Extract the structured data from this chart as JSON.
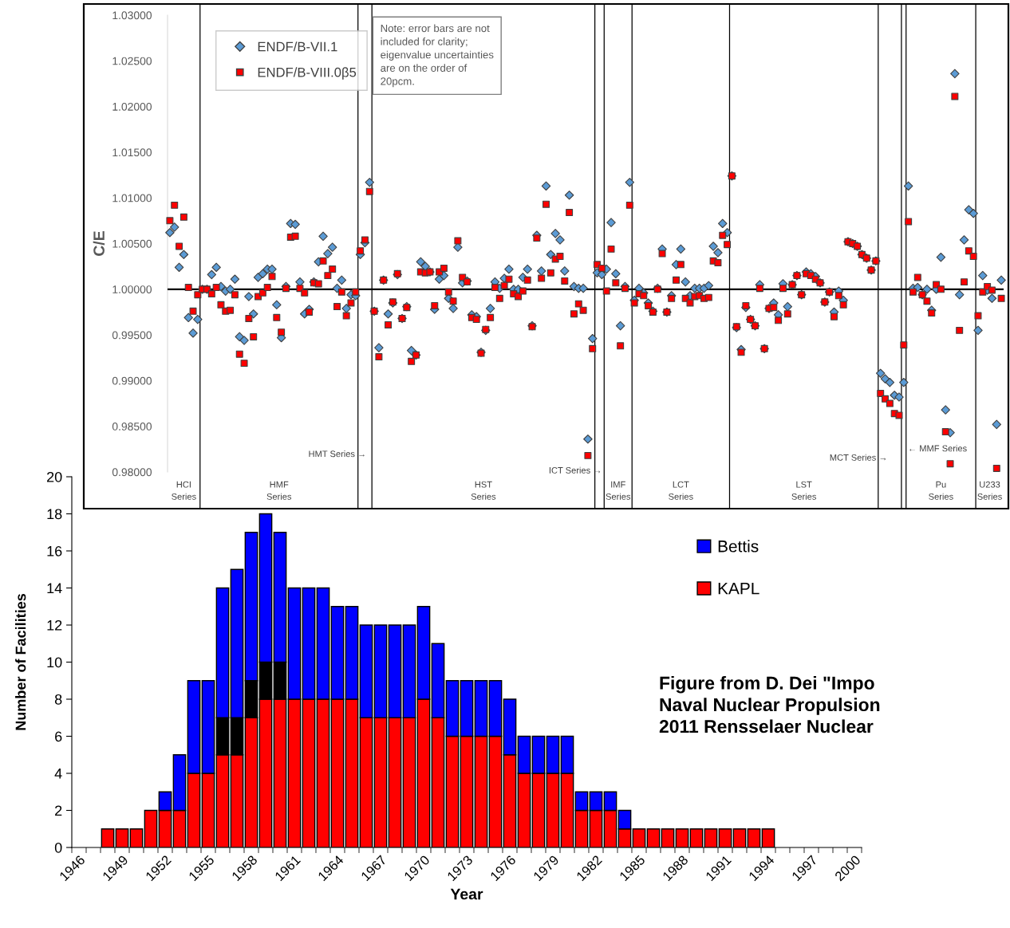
{
  "chart_data": [
    {
      "type": "scatter",
      "ylabel": "C/E",
      "legend": "top left",
      "categories": [
        null,
        null,
        null,
        null,
        null,
        null,
        null,
        null,
        null,
        null,
        null,
        null,
        null,
        null,
        null,
        null,
        null,
        null,
        null,
        null,
        null,
        null,
        null,
        null,
        null,
        null,
        null,
        null,
        null,
        null,
        null,
        null,
        null,
        null,
        null,
        null,
        null,
        null,
        null,
        null,
        null,
        null,
        null,
        null,
        null,
        null,
        null,
        null,
        null,
        null,
        null,
        null,
        null,
        null,
        null,
        null,
        null,
        null,
        null,
        null,
        null,
        null,
        null,
        null,
        null,
        null,
        null,
        null,
        null,
        null,
        null,
        null,
        null,
        null,
        null,
        null,
        null,
        null,
        null,
        null,
        null,
        null,
        null,
        null,
        null,
        null,
        null,
        null,
        null,
        null,
        null,
        null,
        null,
        null,
        null,
        null,
        null,
        null,
        null,
        null,
        null,
        null,
        null,
        null,
        null,
        null,
        null,
        null,
        null,
        null,
        null,
        null,
        null,
        null,
        null,
        null,
        null,
        null,
        null,
        null,
        null,
        null,
        null,
        null,
        null,
        null,
        null,
        null,
        null,
        null,
        null,
        null,
        null,
        null,
        null,
        null,
        null,
        null,
        null,
        null,
        null,
        null,
        null,
        null,
        null,
        null,
        null,
        null,
        null,
        null,
        null,
        null,
        null,
        null,
        null,
        null,
        null,
        null,
        null,
        null,
        null,
        null,
        null,
        null,
        null,
        null,
        null,
        null,
        null,
        null,
        null,
        null,
        null,
        null,
        null,
        null,
        null,
        null,
        null,
        null
      ],
      "ylim": [
        0.98,
        1.03
      ],
      "yticks": [
        {
          "value": 0.98,
          "label": "0.98000"
        },
        {
          "value": 0.985,
          "label": "0.98500"
        },
        {
          "value": 0.99,
          "label": "0.99000"
        },
        {
          "value": 0.995,
          "label": "0.99500"
        },
        {
          "value": 1.0,
          "label": "1.00000"
        },
        {
          "value": 1.005,
          "label": "1.00500"
        },
        {
          "value": 1.01,
          "label": "1.01000"
        },
        {
          "value": 1.015,
          "label": "1.01500"
        },
        {
          "value": 1.02,
          "label": "1.02000"
        },
        {
          "value": 1.025,
          "label": "1.02500"
        },
        {
          "value": 1.03,
          "label": "1.03000"
        }
      ],
      "series": [
        {
          "name": "ENDF/B-VII.1",
          "color": "#5b9bd5",
          "marker": "diamond",
          "values": [
            1.0062,
            1.0068,
            1.0024,
            1.0038,
            0.9969,
            0.9952,
            0.9967,
            1.0,
            1.0,
            1.0016,
            1.0024,
            1.0003,
            0.9998,
            1.0,
            1.0011,
            0.9948,
            0.9944,
            0.9992,
            0.9973,
            1.0013,
            1.0017,
            1.0022,
            1.0022,
            0.9983,
            0.9947,
            1.0003,
            1.0072,
            1.0071,
            1.0008,
            0.9973,
            0.9978,
            1.0008,
            1.003,
            1.0058,
            1.0039,
            1.0046,
            1.0001,
            1.001,
            0.9979,
            0.9994,
            0.9993,
            1.0038,
            1.0051,
            1.0117,
            0.9976,
            0.9936,
            1.001,
            0.9973,
            0.9985,
            1.0016,
            0.9968,
            0.9981,
            0.9933,
            0.9928,
            1.003,
            1.0025,
            1.0019,
            0.9978,
            1.0011,
            1.0015,
            0.999,
            0.9979,
            1.0046,
            1.0007,
            1.0009,
            0.9972,
            0.997,
            0.9931,
            0.9955,
            0.9979,
            1.0008,
            1.0001,
            1.0012,
            1.0022,
            1.0,
            1.0,
            1.0013,
            1.0022,
            0.996,
            1.0059,
            1.002,
            1.0113,
            1.0038,
            1.0061,
            1.0054,
            1.002,
            1.0103,
            1.0003,
            1.0001,
            1.0001,
            0.9836,
            0.9946,
            1.0018,
            1.0016,
            1.0022,
            1.0073,
            1.0017,
            0.996,
            1.0003,
            1.0117,
            0.9988,
            1.0001,
            0.9996,
            0.9985,
            0.9976,
            1.0001,
            1.0044,
            0.9975,
            0.9993,
            1.0027,
            1.0044,
            1.0008,
            0.9993,
            1.0001,
            1.0001,
            1.0001,
            1.0004,
            1.0047,
            1.004,
            1.0072,
            1.0062,
            1.0124,
            0.9958,
            0.9934,
            0.998,
            0.9967,
            0.996,
            1.0005,
            0.9935,
            0.9979,
            0.9985,
            0.9972,
            1.0006,
            0.9981,
            1.0005,
            1.0015,
            0.9994,
            1.0019,
            1.0017,
            1.0014,
            1.0007,
            0.9986,
            0.9997,
            0.9975,
            0.9998,
            0.9988,
            1.0052,
            1.005,
            1.0047,
            1.0038,
            1.0034,
            1.0021,
            1.0031,
            0.9908,
            0.9902,
            0.9898,
            0.9884,
            0.9882,
            0.9898,
            1.0113,
            1.0001,
            1.0002,
            0.9994,
            1.0,
            0.9977,
            1.0,
            1.0035,
            0.9868,
            0.9843,
            1.0236,
            0.9994,
            1.0054,
            1.0087,
            1.0083,
            0.9955,
            1.0015,
            0.9999,
            0.999,
            0.9852,
            1.001
          ]
        },
        {
          "name": "ENDF/B-VIII.0β5",
          "color": "#ff0000",
          "marker": "square",
          "values": [
            1.0075,
            1.0092,
            1.0047,
            1.0079,
            1.0002,
            0.9976,
            0.9994,
            1.0,
            1.0,
            0.9995,
            1.0002,
            0.9983,
            0.9976,
            0.9977,
            0.9994,
            0.9929,
            0.9919,
            0.9968,
            0.9948,
            0.9992,
            0.9996,
            1.0002,
            1.0014,
            0.9969,
            0.9953,
            1.0001,
            1.0057,
            1.0058,
            1.0001,
            0.9996,
            0.9975,
            1.0007,
            1.0006,
            1.0031,
            1.0015,
            1.0022,
            0.9981,
            0.9997,
            0.9971,
            0.9985,
            0.9997,
            1.0042,
            1.0054,
            1.0107,
            0.9976,
            0.9926,
            1.001,
            0.9961,
            0.9986,
            1.0017,
            0.9968,
            0.998,
            0.9921,
            0.9928,
            1.0019,
            1.0018,
            1.0019,
            0.9982,
            1.0019,
            1.0023,
            0.9997,
            0.9987,
            1.0053,
            1.0013,
            1.0008,
            0.9969,
            0.9967,
            0.993,
            0.9956,
            0.9969,
            1.0002,
            0.999,
            1.0004,
            1.0011,
            0.9995,
            0.9992,
            0.9998,
            1.001,
            0.9959,
            1.0056,
            1.0012,
            1.0093,
            1.0018,
            1.0033,
            1.0036,
            1.0009,
            1.0084,
            0.9973,
            0.9984,
            0.9977,
            0.9818,
            0.9935,
            1.0027,
            1.0023,
            0.9998,
            1.0044,
            1.0007,
            0.9938,
            1.0001,
            1.0092,
            0.9985,
            0.9995,
            0.9993,
            0.9982,
            0.9975,
            1.0,
            1.0039,
            0.9975,
            0.999,
            1.001,
            1.0027,
            0.999,
            0.9985,
            0.9992,
            0.9993,
            0.999,
            0.9991,
            1.0031,
            1.0029,
            1.0059,
            1.0049,
            1.0124,
            0.9959,
            0.9931,
            0.9982,
            0.9967,
            0.996,
            1.0001,
            0.9935,
            0.9979,
            0.998,
            0.9966,
            1.0001,
            0.9973,
            1.0005,
            1.0015,
            0.9994,
            1.0017,
            1.0015,
            1.0011,
            1.0007,
            0.9986,
            0.9997,
            0.997,
            0.9993,
            0.9983,
            1.0052,
            1.005,
            1.0047,
            1.0038,
            1.0034,
            1.0021,
            1.0031,
            0.9886,
            0.988,
            0.9875,
            0.9864,
            0.9862,
            0.9939,
            1.0074,
            0.9997,
            1.0013,
            0.9994,
            0.9987,
            0.9974,
            1.0005,
            1.0,
            0.9844,
            0.9809,
            1.0211,
            0.9955,
            1.0008,
            1.0042,
            1.0036,
            0.9971,
            0.9997,
            1.0003,
            0.9999,
            0.9804,
            0.999
          ]
        }
      ],
      "ref_lines": [
        {
          "axis": "y",
          "value": 1.0,
          "label": null,
          "color": "#000000"
        }
      ],
      "annotations": [
        "Note: error bars are not\nincluded for clarity;\neigenvalue uncertainties\nare on the order of\n20pcm.",
        "HMT Series →",
        "ICT Series →",
        "MCT Series →",
        "← MMF Series",
        "HCI\nSeries",
        "HMF\nSeries",
        "HST\nSeries",
        "IMF\nSeries",
        "LCT\nSeries",
        "LST\nSeries",
        "Pu\nSeries",
        "U233\nSeries"
      ]
    },
    {
      "type": "bar",
      "stacked": true,
      "legend": "top right",
      "xlabel": "Year",
      "ylabel": "Number of Facilities",
      "categories": [
        "1946",
        null,
        null,
        "1949",
        null,
        null,
        "1952",
        null,
        null,
        "1955",
        null,
        null,
        "1958",
        null,
        null,
        "1961",
        null,
        null,
        "1964",
        null,
        null,
        "1967",
        null,
        null,
        "1970",
        null,
        null,
        "1973",
        null,
        null,
        "1976",
        null,
        null,
        "1979",
        null,
        null,
        "1982",
        null,
        null,
        "1985",
        null,
        null,
        "1988",
        null,
        null,
        "1991",
        null,
        null,
        "1994",
        null,
        null,
        "1997",
        null,
        null,
        "2000"
      ],
      "ylim": [
        0,
        20
      ],
      "yticks": [
        0,
        2,
        4,
        6,
        8,
        10,
        12,
        14,
        16,
        18,
        20
      ],
      "series": [
        {
          "name": "KAPL",
          "color": "#ff0000",
          "values": [
            null,
            null,
            1,
            1,
            1,
            2,
            2,
            2,
            4,
            4,
            5,
            5,
            7,
            8,
            8,
            8,
            8,
            8,
            8,
            8,
            7,
            7,
            7,
            7,
            8,
            7,
            6,
            6,
            6,
            6,
            5,
            4,
            4,
            4,
            4,
            2,
            2,
            2,
            1,
            1,
            1,
            1,
            1,
            1,
            1,
            1,
            1,
            1,
            1,
            null,
            null,
            null,
            null,
            null,
            null
          ]
        },
        {
          "color": "#000000",
          "values": [
            null,
            null,
            null,
            null,
            null,
            null,
            null,
            null,
            null,
            null,
            2,
            2,
            2,
            2,
            2,
            null,
            null,
            null,
            null,
            null,
            null,
            null,
            null,
            null,
            null,
            null,
            null,
            null,
            null,
            null,
            null,
            null,
            null,
            null,
            null,
            null,
            null,
            null,
            null,
            null,
            null,
            null,
            null,
            null,
            null,
            null,
            null,
            null,
            null,
            null,
            null,
            null,
            null,
            null,
            null
          ]
        },
        {
          "name": "Bettis",
          "color": "#0000ff",
          "values": [
            null,
            null,
            null,
            null,
            null,
            null,
            1,
            3,
            5,
            5,
            7,
            8,
            8,
            8,
            7,
            6,
            6,
            6,
            5,
            5,
            5,
            5,
            5,
            5,
            5,
            4,
            3,
            3,
            3,
            3,
            3,
            2,
            2,
            2,
            2,
            1,
            1,
            1,
            1,
            null,
            null,
            null,
            null,
            null,
            null,
            null,
            null,
            null,
            null,
            null,
            null,
            null,
            null,
            null,
            null
          ]
        }
      ],
      "annotations": [
        "Figure from D. Dei \"Impo\nNaval Nuclear Propulsion\n2011 Rensselaer Nuclear"
      ]
    }
  ]
}
